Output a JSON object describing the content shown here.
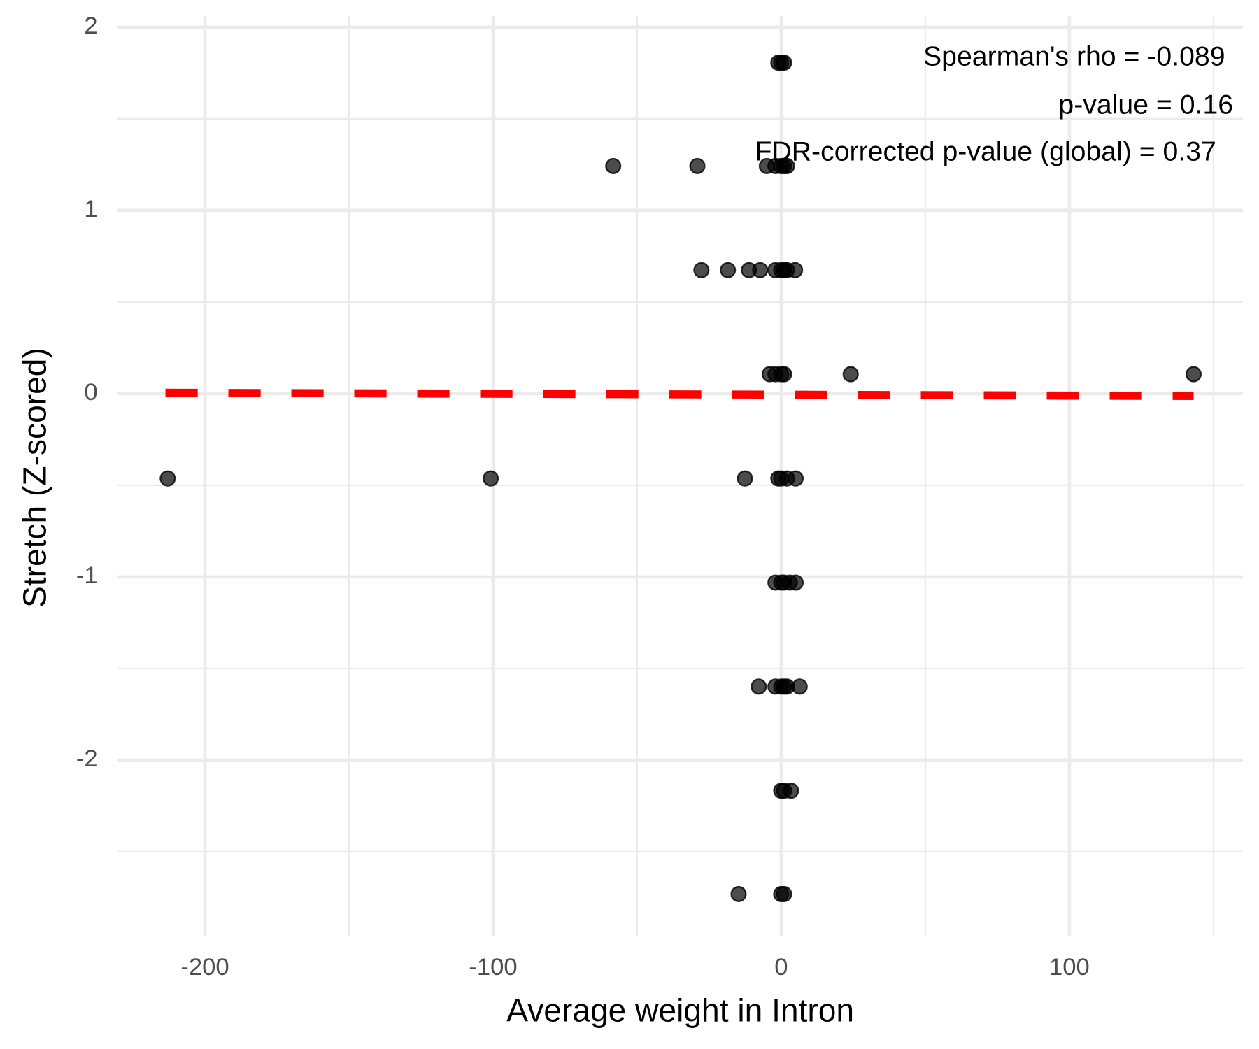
{
  "chart_data": {
    "type": "scatter",
    "x_label": "Average weight in Intron",
    "y_label": "Stretch (Z-scored)",
    "annotations": [
      "Spearman's rho = -0.089",
      "p-value = 0.16",
      "FDR-corrected p-value (global) = 0.37"
    ],
    "xlim": [
      -230.5,
      160.2
    ],
    "ylim": [
      -2.96,
      2.06
    ],
    "xticks": [
      -200,
      -100,
      0,
      100
    ],
    "yticks": [
      -2,
      -1,
      0,
      1,
      2
    ],
    "xminor": [
      -150,
      -50,
      50,
      150
    ],
    "yminor": [
      -2.5,
      -1.5,
      -0.5,
      0.5,
      1.5
    ],
    "grid": true,
    "series": [
      {
        "color": "#000000",
        "x": [
          -1,
          0,
          1,
          -58.3,
          -29.1,
          -5,
          -2,
          0,
          1,
          2,
          -27.7,
          -18.5,
          -11.2,
          -7.3,
          -2,
          0,
          1,
          2,
          4.8,
          -4,
          -2,
          0,
          1,
          24.1,
          143.1,
          -212.9,
          -100.8,
          -12.6,
          -1,
          0,
          2,
          5,
          -2,
          0,
          1,
          3,
          5,
          -7.8,
          -2,
          0,
          1,
          2,
          6.4,
          0,
          1,
          3.4,
          -14.8,
          0,
          1
        ],
        "y": [
          1.806,
          1.806,
          1.806,
          1.242,
          1.242,
          1.242,
          1.242,
          1.242,
          1.242,
          1.242,
          0.674,
          0.674,
          0.674,
          0.674,
          0.674,
          0.674,
          0.674,
          0.674,
          0.674,
          0.106,
          0.106,
          0.106,
          0.106,
          0.106,
          0.106,
          -0.463,
          -0.463,
          -0.463,
          -0.463,
          -0.463,
          -0.463,
          -0.463,
          -1.031,
          -1.031,
          -1.031,
          -1.031,
          -1.031,
          -1.599,
          -1.599,
          -1.599,
          -1.599,
          -1.599,
          -1.599,
          -2.167,
          -2.167,
          -2.167,
          -2.731,
          -2.731,
          -2.731
        ]
      }
    ],
    "trend_line": {
      "x": [
        -213.7,
        143.1
      ],
      "y": [
        0.005,
        -0.013
      ],
      "color": "#ff0000"
    }
  }
}
